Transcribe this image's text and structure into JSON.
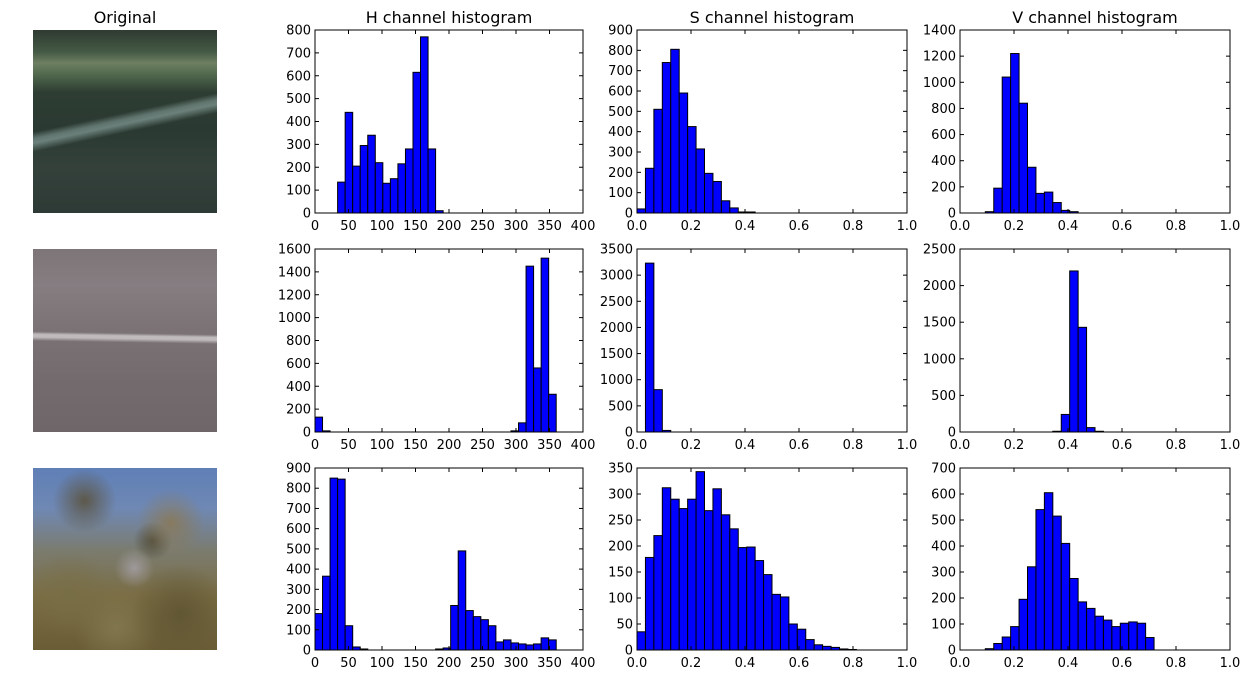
{
  "titles": {
    "original": "Original",
    "h": "H channel histogram",
    "s": "S channel histogram",
    "v": "V channel histogram"
  },
  "colors": {
    "bar_fill": "#0000ff",
    "bar_stroke": "#000000",
    "axes": "#000000",
    "background": "#ffffff"
  },
  "images": [
    {
      "name": "road-dark-green",
      "dominant_colors": [
        "#3c4a3f",
        "#566e58",
        "#2c3b33",
        "#606b61"
      ]
    },
    {
      "name": "road-gray",
      "dominant_colors": [
        "#7b7274",
        "#8a8385",
        "#6f686a",
        "#c8c1c4"
      ]
    },
    {
      "name": "tree-sky",
      "dominant_colors": [
        "#6a86b8",
        "#7f7548",
        "#5e5536",
        "#b1a7a2"
      ]
    }
  ],
  "chart_data": [
    {
      "type": "bar",
      "row": 0,
      "channel": "H",
      "title": "H channel histogram",
      "xlim": [
        0,
        400
      ],
      "ylim": [
        0,
        800
      ],
      "xticks": [
        0,
        50,
        100,
        150,
        200,
        250,
        300,
        350,
        400
      ],
      "yticks": [
        0,
        100,
        200,
        300,
        400,
        500,
        600,
        700,
        800
      ],
      "bin_start": 0,
      "bin_width": 11.25,
      "values": [
        0,
        0,
        0,
        135,
        440,
        205,
        295,
        340,
        220,
        130,
        150,
        215,
        280,
        615,
        770,
        280,
        10,
        0,
        0,
        0,
        0,
        0,
        0,
        0,
        0,
        0,
        0,
        0,
        0,
        0,
        0,
        0
      ]
    },
    {
      "type": "bar",
      "row": 0,
      "channel": "S",
      "xlim": [
        0,
        1.0
      ],
      "ylim": [
        0,
        900
      ],
      "xticks": [
        0.0,
        0.2,
        0.4,
        0.6,
        0.8,
        1.0
      ],
      "yticks": [
        0,
        100,
        200,
        300,
        400,
        500,
        600,
        700,
        800,
        900
      ],
      "bin_start": 0,
      "bin_width": 0.03125,
      "values": [
        20,
        220,
        510,
        740,
        805,
        590,
        425,
        315,
        195,
        155,
        60,
        25,
        5,
        5,
        0,
        0,
        0,
        0,
        0,
        0,
        0,
        0,
        0,
        0,
        0,
        0,
        0,
        0,
        0,
        0,
        0,
        0
      ]
    },
    {
      "type": "bar",
      "row": 0,
      "channel": "V",
      "xlim": [
        0,
        1.0
      ],
      "ylim": [
        0,
        1400
      ],
      "xticks": [
        0.0,
        0.2,
        0.4,
        0.6,
        0.8,
        1.0
      ],
      "yticks": [
        0,
        200,
        400,
        600,
        800,
        1000,
        1200,
        1400
      ],
      "bin_start": 0,
      "bin_width": 0.03125,
      "values": [
        0,
        0,
        0,
        10,
        190,
        1040,
        1220,
        840,
        350,
        150,
        160,
        80,
        20,
        10,
        0,
        0,
        0,
        0,
        0,
        0,
        0,
        0,
        0,
        0,
        0,
        0,
        0,
        0,
        0,
        0,
        0,
        0
      ]
    },
    {
      "type": "bar",
      "row": 1,
      "channel": "H",
      "xlim": [
        0,
        400
      ],
      "ylim": [
        0,
        1600
      ],
      "xticks": [
        0,
        50,
        100,
        150,
        200,
        250,
        300,
        350,
        400
      ],
      "yticks": [
        0,
        200,
        400,
        600,
        800,
        1000,
        1200,
        1400,
        1600
      ],
      "bin_start": 0,
      "bin_width": 11.25,
      "values": [
        130,
        10,
        0,
        0,
        0,
        0,
        0,
        0,
        0,
        0,
        0,
        0,
        0,
        0,
        0,
        0,
        0,
        0,
        0,
        0,
        0,
        0,
        0,
        0,
        0,
        0,
        10,
        80,
        1450,
        560,
        1520,
        330
      ]
    },
    {
      "type": "bar",
      "row": 1,
      "channel": "S",
      "xlim": [
        0,
        1.0
      ],
      "ylim": [
        0,
        3500
      ],
      "xticks": [
        0.0,
        0.2,
        0.4,
        0.6,
        0.8,
        1.0
      ],
      "yticks": [
        0,
        500,
        1000,
        1500,
        2000,
        2500,
        3000,
        3500
      ],
      "bin_start": 0,
      "bin_width": 0.03125,
      "values": [
        0,
        3230,
        810,
        30,
        0,
        0,
        0,
        0,
        0,
        0,
        0,
        0,
        0,
        0,
        0,
        0,
        0,
        0,
        0,
        0,
        0,
        0,
        0,
        0,
        0,
        0,
        0,
        0,
        0,
        0,
        0,
        0
      ]
    },
    {
      "type": "bar",
      "row": 1,
      "channel": "V",
      "xlim": [
        0,
        1.0
      ],
      "ylim": [
        0,
        2500
      ],
      "xticks": [
        0.0,
        0.2,
        0.4,
        0.6,
        0.8,
        1.0
      ],
      "yticks": [
        0,
        500,
        1000,
        1500,
        2000,
        2500
      ],
      "bin_start": 0,
      "bin_width": 0.03125,
      "values": [
        0,
        0,
        0,
        0,
        0,
        0,
        0,
        0,
        0,
        0,
        0,
        10,
        240,
        2200,
        1430,
        60,
        10,
        0,
        0,
        0,
        0,
        0,
        0,
        0,
        0,
        0,
        0,
        0,
        0,
        0,
        0,
        0
      ]
    },
    {
      "type": "bar",
      "row": 2,
      "channel": "H",
      "xlim": [
        0,
        400
      ],
      "ylim": [
        0,
        900
      ],
      "xticks": [
        0,
        50,
        100,
        150,
        200,
        250,
        300,
        350,
        400
      ],
      "yticks": [
        0,
        100,
        200,
        300,
        400,
        500,
        600,
        700,
        800,
        900
      ],
      "bin_start": 0,
      "bin_width": 11.25,
      "values": [
        180,
        365,
        850,
        845,
        120,
        15,
        5,
        0,
        0,
        0,
        0,
        0,
        0,
        0,
        0,
        0,
        5,
        10,
        220,
        490,
        195,
        165,
        150,
        120,
        40,
        50,
        35,
        30,
        25,
        30,
        60,
        50
      ]
    },
    {
      "type": "bar",
      "row": 2,
      "channel": "S",
      "xlim": [
        0,
        1.0
      ],
      "ylim": [
        0,
        350
      ],
      "xticks": [
        0.0,
        0.2,
        0.4,
        0.6,
        0.8,
        1.0
      ],
      "yticks": [
        0,
        50,
        100,
        150,
        200,
        250,
        300,
        350
      ],
      "bin_start": 0,
      "bin_width": 0.03125,
      "values": [
        35,
        178,
        220,
        312,
        290,
        272,
        290,
        343,
        268,
        310,
        260,
        233,
        197,
        198,
        172,
        145,
        107,
        102,
        50,
        40,
        20,
        10,
        7,
        5,
        2,
        1,
        0,
        0,
        0,
        0,
        0,
        0
      ]
    },
    {
      "type": "bar",
      "row": 2,
      "channel": "V",
      "xlim": [
        0,
        1.0
      ],
      "ylim": [
        0,
        700
      ],
      "xticks": [
        0.0,
        0.2,
        0.4,
        0.6,
        0.8,
        1.0
      ],
      "yticks": [
        0,
        100,
        200,
        300,
        400,
        500,
        600,
        700
      ],
      "bin_start": 0,
      "bin_width": 0.03125,
      "values": [
        0,
        0,
        0,
        5,
        25,
        50,
        90,
        195,
        320,
        540,
        605,
        515,
        410,
        275,
        185,
        160,
        130,
        115,
        90,
        103,
        108,
        103,
        48,
        0,
        0,
        0,
        0,
        0,
        0,
        0,
        0,
        0
      ]
    }
  ]
}
